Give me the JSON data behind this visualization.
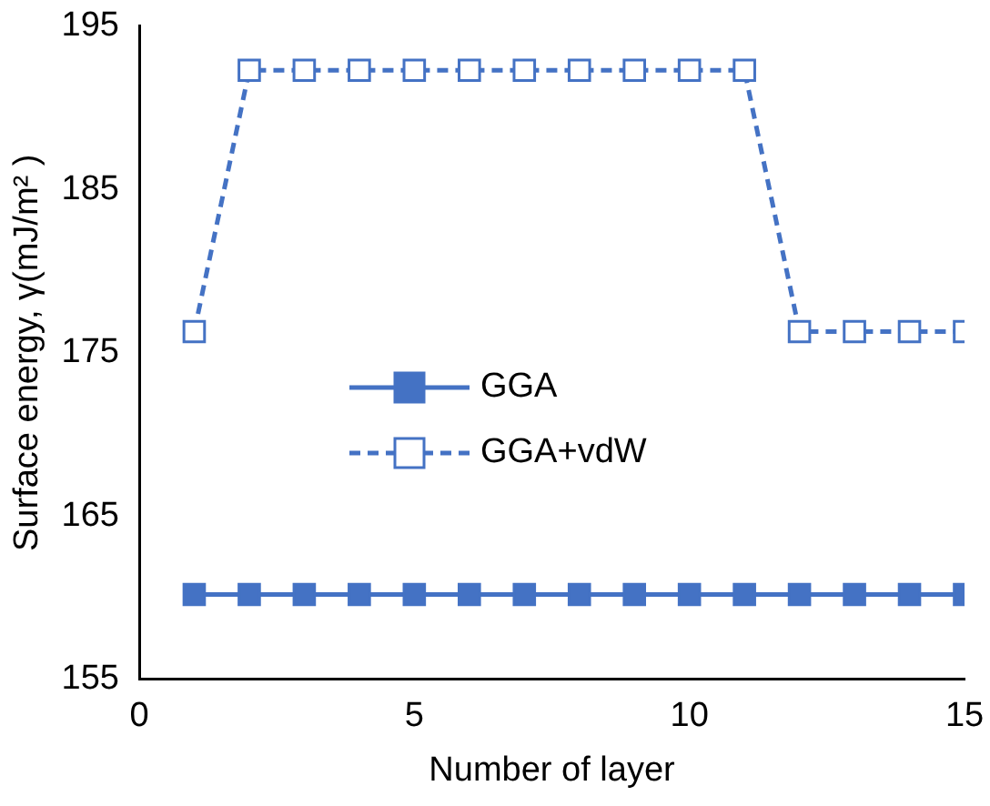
{
  "chart_data": {
    "type": "line",
    "xlabel": "Number of layer",
    "ylabel": "Surface energy, γ(mJ/m² )",
    "x": [
      1,
      2,
      3,
      4,
      5,
      6,
      7,
      8,
      9,
      10,
      11,
      12,
      13,
      14,
      15
    ],
    "series": [
      {
        "name": "GGA",
        "color": "#4472c4",
        "line_style": "solid",
        "values": [
          160.2,
          160.2,
          160.2,
          160.2,
          160.2,
          160.2,
          160.2,
          160.2,
          160.2,
          160.2,
          160.2,
          160.2,
          160.2,
          160.2,
          160.2
        ]
      },
      {
        "name": "GGA+vdW",
        "color": "#4472c4",
        "line_style": "dashed",
        "values": [
          176.3,
          192.3,
          192.3,
          192.3,
          192.3,
          192.3,
          192.3,
          192.3,
          192.3,
          192.3,
          192.3,
          176.3,
          176.3,
          176.3,
          176.3
        ]
      }
    ],
    "xlim": [
      0,
      15
    ],
    "xticks": [
      0,
      5,
      10,
      15
    ],
    "ylim": [
      155,
      195
    ],
    "yticks": [
      155,
      165,
      175,
      185,
      195
    ],
    "grid": false,
    "legend": "center",
    "marker": "square"
  }
}
